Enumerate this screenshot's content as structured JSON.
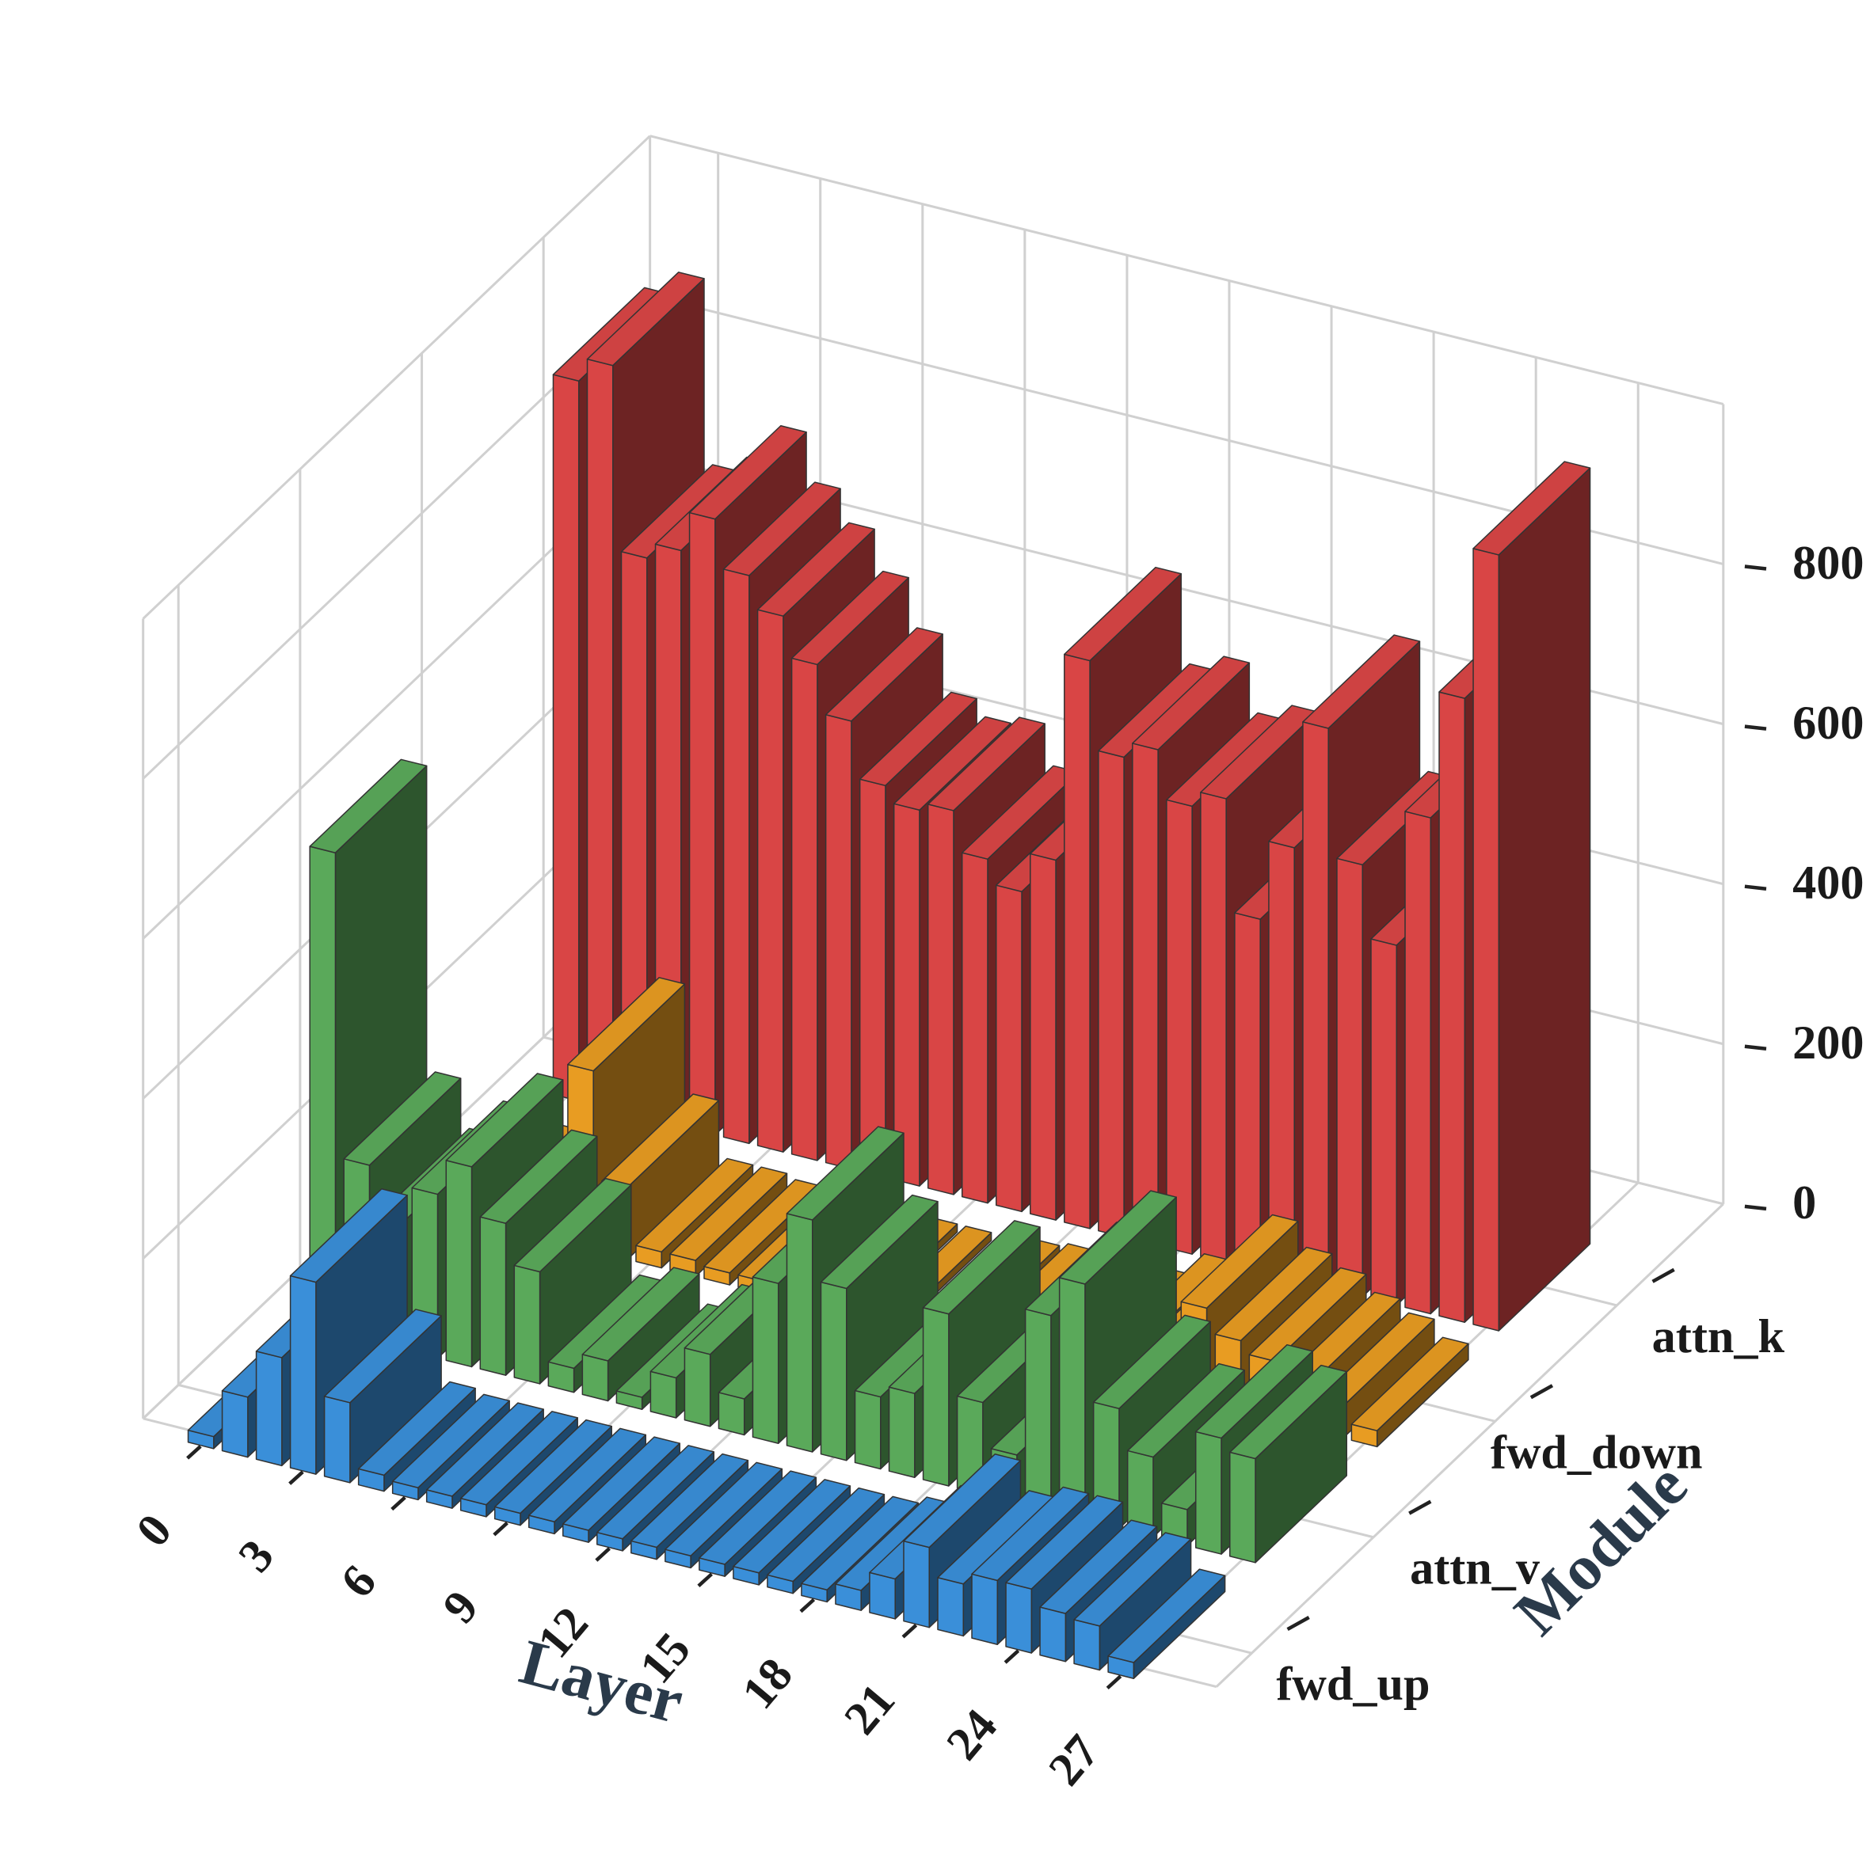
{
  "chart_data": {
    "type": "bar3d",
    "x_label": "Layer",
    "y_label": "Module",
    "x": [
      0,
      1,
      2,
      3,
      4,
      5,
      6,
      7,
      8,
      9,
      10,
      11,
      12,
      13,
      14,
      15,
      16,
      17,
      18,
      19,
      20,
      21,
      22,
      23,
      24,
      25,
      26,
      27
    ],
    "series": [
      {
        "name": "fwd_up",
        "color": "#3a8fd9",
        "values": [
          15,
          75,
          135,
          240,
          100,
          20,
          15,
          15,
          15,
          15,
          15,
          15,
          15,
          15,
          15,
          15,
          15,
          15,
          15,
          25,
          50,
          100,
          65,
          80,
          80,
          60,
          55,
          20
        ]
      },
      {
        "name": "attn_v",
        "color": "#5aa95a",
        "values": [
          600,
          220,
          160,
          205,
          250,
          190,
          140,
          30,
          50,
          15,
          50,
          90,
          45,
          200,
          290,
          215,
          90,
          105,
          215,
          115,
          60,
          245,
          295,
          150,
          100,
          45,
          145,
          130
        ]
      },
      {
        "name": "fwd_down",
        "color": "#e89c22",
        "values": [
          10,
          10,
          15,
          20,
          225,
          90,
          20,
          20,
          15,
          15,
          10,
          10,
          10,
          10,
          10,
          15,
          20,
          20,
          25,
          20,
          50,
          60,
          120,
          90,
          75,
          55,
          40,
          20
        ]
      },
      {
        "name": "attn_k",
        "color": "#d94545",
        "values": [
          900,
          930,
          700,
          720,
          770,
          710,
          670,
          620,
          560,
          490,
          470,
          480,
          430,
          400,
          450,
          710,
          600,
          620,
          560,
          580,
          440,
          540,
          700,
          540,
          450,
          620,
          780,
          970
        ]
      }
    ],
    "xlim": [
      -2,
      29.5
    ],
    "xticks": [
      0,
      3,
      6,
      9,
      12,
      15,
      18,
      21,
      24,
      27
    ],
    "ylim": [
      -0.29,
      3.875
    ],
    "zlim": [
      0,
      1000
    ],
    "zticks": [
      0,
      200,
      400,
      600,
      800
    ],
    "grid": true
  }
}
